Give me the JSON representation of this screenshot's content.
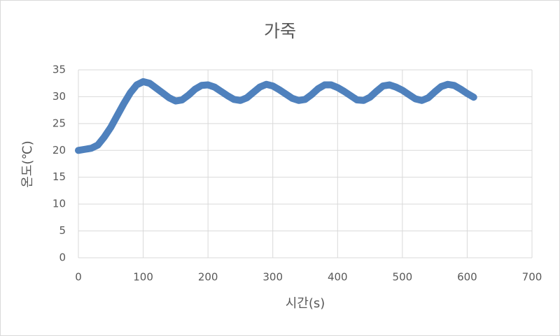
{
  "chart_data": {
    "type": "line",
    "title": "가죽",
    "x_label": "시간(s)",
    "y_label": "온도(℃)",
    "x": [
      0,
      10,
      20,
      30,
      40,
      50,
      60,
      70,
      80,
      90,
      100,
      110,
      120,
      130,
      140,
      150,
      160,
      170,
      180,
      190,
      200,
      210,
      220,
      230,
      240,
      250,
      260,
      270,
      280,
      290,
      300,
      310,
      320,
      330,
      340,
      350,
      360,
      370,
      380,
      390,
      400,
      410,
      420,
      430,
      440,
      450,
      460,
      470,
      480,
      490,
      500,
      510,
      520,
      530,
      540,
      550,
      560,
      570,
      580,
      590,
      600,
      610
    ],
    "values": [
      20.0,
      20.2,
      20.4,
      21.0,
      22.5,
      24.3,
      26.5,
      28.7,
      30.7,
      32.2,
      32.8,
      32.5,
      31.6,
      30.7,
      29.8,
      29.2,
      29.4,
      30.3,
      31.4,
      32.1,
      32.2,
      31.8,
      31.0,
      30.2,
      29.5,
      29.3,
      29.8,
      30.8,
      31.8,
      32.3,
      32.0,
      31.3,
      30.5,
      29.7,
      29.3,
      29.5,
      30.4,
      31.5,
      32.2,
      32.2,
      31.7,
      31.0,
      30.2,
      29.4,
      29.3,
      29.9,
      31.0,
      32.0,
      32.2,
      31.8,
      31.2,
      30.4,
      29.6,
      29.3,
      29.8,
      30.9,
      31.9,
      32.3,
      32.1,
      31.4,
      30.6,
      29.9
    ],
    "color": "#4f81bd",
    "xlim": [
      0,
      700
    ],
    "xticks": [
      0,
      100,
      200,
      300,
      400,
      500,
      600,
      700
    ],
    "ylim": [
      0,
      35
    ],
    "yticks": [
      0,
      5,
      10,
      15,
      20,
      25,
      30,
      35
    ],
    "grid": true
  }
}
